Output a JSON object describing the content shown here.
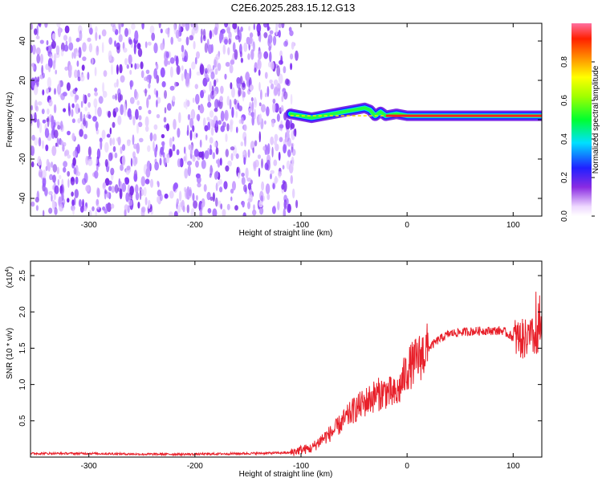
{
  "title": "C2E6.2025.283.15.12.G13",
  "chart_data": [
    {
      "type": "heatmap",
      "xlabel": "Height of straight line (km)",
      "ylabel": "Frequency (Hz)",
      "xlim": [
        -355,
        127
      ],
      "ylim": [
        -49,
        49
      ],
      "xticks": [
        -300,
        -200,
        -100,
        0,
        100
      ],
      "yticks": [
        -40,
        -20,
        0,
        20,
        40
      ],
      "noise_region_x": [
        -355,
        -110
      ],
      "ridge": {
        "x": [
          -110,
          -100,
          -90,
          -80,
          -70,
          -60,
          -50,
          -40,
          -35,
          -30,
          -25,
          -20,
          -10,
          0,
          20,
          50,
          90,
          100,
          110,
          120,
          127
        ],
        "y": [
          3,
          2,
          1,
          2,
          3,
          4,
          5,
          6,
          5,
          2,
          4,
          2,
          3,
          2,
          2,
          2,
          2,
          2,
          2,
          2,
          2
        ]
      },
      "colorbar": {
        "label": "Normalized spectral amplitude",
        "range": [
          0,
          1
        ],
        "ticks": [
          "0.0",
          "0.2",
          "0.4",
          "0.6",
          "0.8"
        ]
      }
    },
    {
      "type": "line",
      "xlabel": "Height of straight line (km)",
      "ylabel": "SNR (10 * v/v)",
      "y_multiplier": "(x10",
      "y_multiplier_exp": "4",
      "y_multiplier_close": ")",
      "xlim": [
        -355,
        127
      ],
      "ylim": [
        0,
        2.7
      ],
      "xticks": [
        -300,
        -200,
        -100,
        0,
        100
      ],
      "yticks": [
        "0.5",
        "1.0",
        "1.5",
        "2.0",
        "2.5"
      ],
      "series": [
        {
          "color": "#e8202a",
          "x": [
            -355,
            -300,
            -250,
            -200,
            -150,
            -110,
            -100,
            -90,
            -80,
            -70,
            -60,
            -50,
            -40,
            -30,
            -20,
            -10,
            0,
            10,
            20,
            30,
            40,
            50,
            60,
            70,
            80,
            90,
            100,
            110,
            120,
            127
          ],
          "y": [
            0.05,
            0.05,
            0.04,
            0.04,
            0.05,
            0.06,
            0.1,
            0.12,
            0.25,
            0.35,
            0.5,
            0.65,
            0.75,
            0.85,
            0.9,
            0.85,
            1.2,
            1.35,
            1.5,
            1.62,
            1.7,
            1.72,
            1.73,
            1.74,
            1.74,
            1.74,
            1.65,
            1.62,
            1.65,
            1.7
          ]
        }
      ]
    }
  ]
}
